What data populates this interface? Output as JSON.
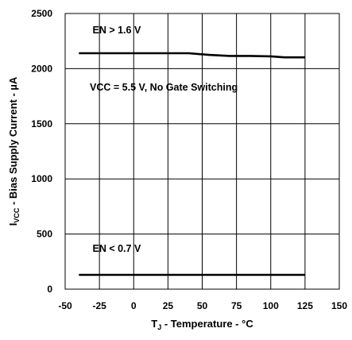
{
  "chart_data": {
    "type": "line",
    "xlabel": {
      "main": "T",
      "sub": "J",
      "rest": " - Temperature - °C"
    },
    "ylabel": {
      "main": "I",
      "sub": "VCC",
      "rest": " - Bias Supply Current - µA"
    },
    "xlim": [
      -50,
      150
    ],
    "ylim": [
      0,
      2500
    ],
    "x_ticks": [
      -50,
      -25,
      0,
      25,
      50,
      75,
      100,
      125,
      150
    ],
    "y_ticks": [
      0,
      500,
      1000,
      1500,
      2000,
      2500
    ],
    "grid": true,
    "series": [
      {
        "values": [
          {
            "x": -40,
            "y": 2140
          },
          {
            "x": -25,
            "y": 2140
          },
          {
            "x": 0,
            "y": 2140
          },
          {
            "x": 25,
            "y": 2140
          },
          {
            "x": 40,
            "y": 2140
          },
          {
            "x": 55,
            "y": 2125
          },
          {
            "x": 70,
            "y": 2115
          },
          {
            "x": 85,
            "y": 2115
          },
          {
            "x": 100,
            "y": 2112
          },
          {
            "x": 110,
            "y": 2102
          },
          {
            "x": 125,
            "y": 2102
          }
        ]
      },
      {
        "values": [
          {
            "x": -40,
            "y": 130
          },
          {
            "x": 0,
            "y": 130
          },
          {
            "x": 50,
            "y": 130
          },
          {
            "x": 100,
            "y": 130
          },
          {
            "x": 125,
            "y": 130
          }
        ]
      }
    ],
    "annotations": [
      {
        "text": "EN > 1.6 V",
        "x": -30,
        "y": 2320
      },
      {
        "text": "VCC = 5.5 V, No Gate Switching",
        "x": -32,
        "y": 1800
      },
      {
        "text": "EN < 0.7 V",
        "x": -30,
        "y": 340
      }
    ]
  }
}
